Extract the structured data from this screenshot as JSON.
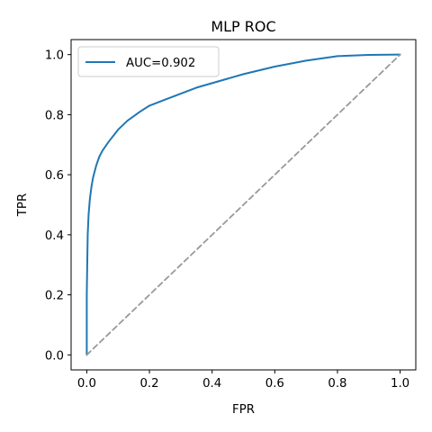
{
  "chart_data": {
    "type": "line",
    "title": "MLP ROC",
    "xlabel": "FPR",
    "ylabel": "TPR",
    "xlim": [
      -0.05,
      1.05
    ],
    "ylim": [
      -0.05,
      1.05
    ],
    "xticks": [
      "0.0",
      "0.2",
      "0.4",
      "0.6",
      "0.8",
      "1.0"
    ],
    "yticks": [
      "0.0",
      "0.2",
      "0.4",
      "0.6",
      "0.8",
      "1.0"
    ],
    "grid": false,
    "legend": {
      "placement": "top-left",
      "entries": [
        "AUC=0.902"
      ]
    },
    "series": [
      {
        "name": "AUC=0.902",
        "color": "#1f77b4",
        "x": [
          0.0,
          0.0,
          0.003,
          0.006,
          0.01,
          0.015,
          0.02,
          0.03,
          0.04,
          0.05,
          0.07,
          0.1,
          0.13,
          0.17,
          0.2,
          0.25,
          0.3,
          0.35,
          0.4,
          0.45,
          0.5,
          0.6,
          0.7,
          0.8,
          0.9,
          1.0
        ],
        "y": [
          0.0,
          0.2,
          0.4,
          0.47,
          0.52,
          0.56,
          0.59,
          0.63,
          0.66,
          0.68,
          0.71,
          0.75,
          0.78,
          0.81,
          0.83,
          0.85,
          0.87,
          0.89,
          0.905,
          0.92,
          0.935,
          0.96,
          0.98,
          0.995,
          0.999,
          1.0
        ]
      },
      {
        "name": "",
        "color": "#999999",
        "dashed": true,
        "x": [
          0.0,
          1.0
        ],
        "y": [
          0.0,
          1.0
        ]
      }
    ]
  }
}
